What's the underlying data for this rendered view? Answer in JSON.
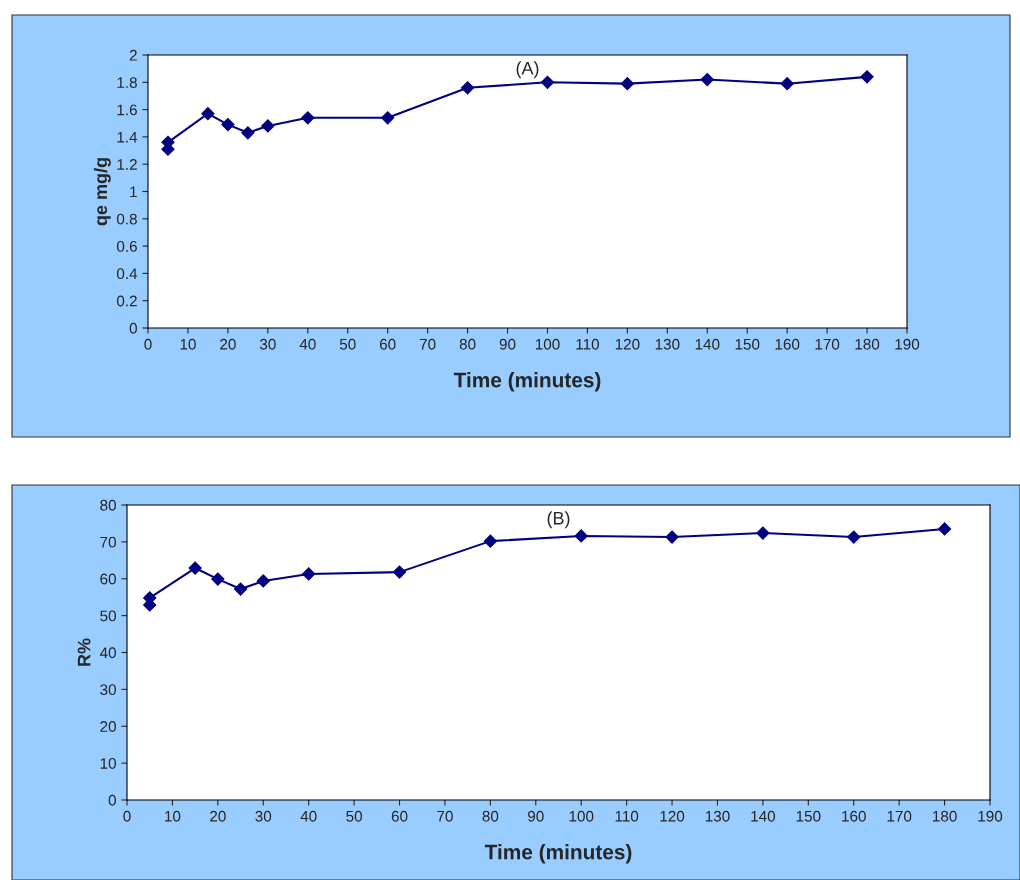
{
  "chart_data": [
    {
      "type": "line",
      "title": "(A)",
      "xlabel": "Time (minutes)",
      "ylabel": "qe mg/g",
      "x": [
        5,
        5,
        15,
        20,
        25,
        30,
        40,
        60,
        80,
        100,
        120,
        140,
        160,
        180
      ],
      "series": [
        {
          "color": "#000080",
          "values": [
            1.31,
            1.36,
            1.57,
            1.49,
            1.43,
            1.48,
            1.54,
            1.54,
            1.76,
            1.8,
            1.79,
            1.82,
            1.79,
            1.84
          ]
        }
      ],
      "xlim": [
        0,
        190
      ],
      "xticks": [
        0,
        10,
        20,
        30,
        40,
        50,
        60,
        70,
        80,
        90,
        100,
        110,
        120,
        130,
        140,
        150,
        160,
        170,
        180,
        190
      ],
      "ylim": [
        0,
        2
      ],
      "yticks": [
        0,
        0.2,
        0.4,
        0.6,
        0.8,
        1,
        1.2,
        1.4,
        1.6,
        1.8,
        2
      ],
      "marker": "diamond",
      "line_style": "solid",
      "grid": false,
      "legend": false
    },
    {
      "type": "line",
      "title": "(B)",
      "xlabel": "Time (minutes)",
      "ylabel": "R%",
      "x": [
        5,
        5,
        15,
        20,
        25,
        30,
        40,
        60,
        80,
        100,
        120,
        140,
        160,
        180
      ],
      "series": [
        {
          "color": "#000080",
          "values": [
            52.9,
            54.8,
            62.9,
            59.9,
            57.2,
            59.4,
            61.3,
            61.8,
            70.2,
            71.6,
            71.3,
            72.4,
            71.3,
            73.5
          ]
        }
      ],
      "xlim": [
        0,
        190
      ],
      "xticks": [
        0,
        10,
        20,
        30,
        40,
        50,
        60,
        70,
        80,
        90,
        100,
        110,
        120,
        130,
        140,
        150,
        160,
        170,
        180,
        190
      ],
      "ylim": [
        0,
        80
      ],
      "yticks": [
        0,
        10,
        20,
        30,
        40,
        50,
        60,
        70,
        80
      ],
      "marker": "diamond",
      "line_style": "solid",
      "grid": false,
      "legend": false
    }
  ]
}
